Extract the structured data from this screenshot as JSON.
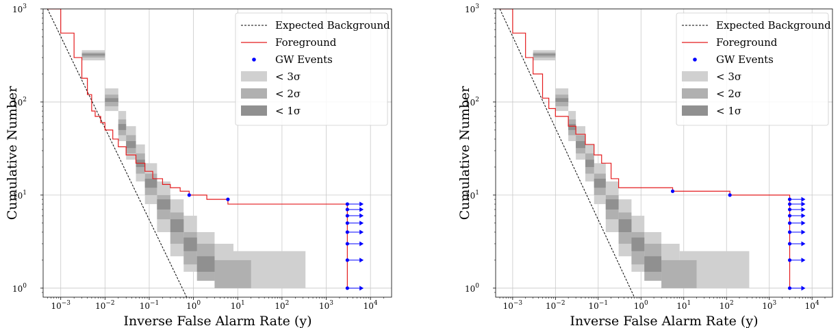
{
  "chart_data": [
    {
      "type": "line",
      "xlabel": "Inverse False Alarm Rate (y)",
      "ylabel": "Cumulative Number",
      "x_scale": "log",
      "y_scale": "log",
      "xlim": [
        0.0004,
        30000
      ],
      "ylim": [
        0.8,
        1000
      ],
      "x_ticks": [
        {
          "value": 0.001,
          "base": "10",
          "exp": "−3"
        },
        {
          "value": 0.01,
          "base": "10",
          "exp": "−2"
        },
        {
          "value": 0.1,
          "base": "10",
          "exp": "−1"
        },
        {
          "value": 1,
          "base": "10",
          "exp": "0"
        },
        {
          "value": 10,
          "base": "10",
          "exp": "1"
        },
        {
          "value": 100,
          "base": "10",
          "exp": "2"
        },
        {
          "value": 1000,
          "base": "10",
          "exp": "3"
        },
        {
          "value": 10000,
          "base": "10",
          "exp": "4"
        }
      ],
      "y_ticks": [
        {
          "value": 1,
          "base": "10",
          "exp": "0"
        },
        {
          "value": 10,
          "base": "10",
          "exp": "1"
        },
        {
          "value": 100,
          "base": "10",
          "exp": "2"
        },
        {
          "value": 1000,
          "base": "10",
          "exp": "3"
        }
      ],
      "grid": true,
      "legend_position": "top-right",
      "series": [
        {
          "name": "Expected Background",
          "style": "dashed",
          "color": "#000000",
          "x": [
            0.0005,
            0.7
          ],
          "y": [
            1000,
            0.8
          ]
        },
        {
          "name": "Foreground",
          "style": "step",
          "color": "#e41a1c",
          "x": [
            0.0005,
            0.001,
            0.002,
            0.003,
            0.004,
            0.005,
            0.006,
            0.008,
            0.01,
            0.015,
            0.02,
            0.03,
            0.05,
            0.08,
            0.12,
            0.2,
            0.3,
            0.5,
            0.8,
            2,
            6,
            3000
          ],
          "y": [
            1000,
            550,
            300,
            180,
            120,
            80,
            70,
            60,
            50,
            40,
            33,
            27,
            22,
            18,
            15,
            13,
            12,
            11,
            10,
            9,
            8,
            1
          ]
        },
        {
          "name": "GW Events",
          "style": "points",
          "color": "#0000ff",
          "x": [
            0.8,
            6,
            3000,
            3000,
            3000,
            3000,
            3000,
            3000,
            3000,
            3000
          ],
          "y": [
            10,
            9,
            8,
            7,
            6,
            5,
            4,
            3,
            2,
            1
          ]
        }
      ],
      "upper_limit_arrows": {
        "x_start": 3000,
        "x_end": 7000,
        "y": [
          8,
          7,
          6,
          5,
          4,
          3,
          2,
          1
        ]
      },
      "bands": [
        {
          "name": "< 3σ",
          "color": "#d0d0d0",
          "x": [
            0.003,
            0.01,
            0.02,
            0.03,
            0.05,
            0.08,
            0.15,
            0.3,
            0.6,
            1.2,
            3,
            8,
            340
          ],
          "low": [
            280,
            80,
            38,
            24,
            14,
            8,
            4,
            2.2,
            1.5,
            1.5,
            1.2,
            1,
            1
          ],
          "high": [
            360,
            140,
            80,
            55,
            35,
            22,
            14,
            9,
            6,
            4,
            3,
            2.5,
            1.5
          ]
        },
        {
          "name": "< 2σ",
          "color": "#b0b0b0",
          "x": [
            0.003,
            0.01,
            0.02,
            0.03,
            0.05,
            0.08,
            0.15,
            0.3,
            0.6,
            1.2,
            3,
            20
          ],
          "low": [
            300,
            90,
            44,
            28,
            17,
            10,
            5.5,
            3,
            1.8,
            1.2,
            1,
            1
          ],
          "high": [
            340,
            120,
            65,
            44,
            28,
            17,
            10,
            6.5,
            4,
            3,
            2,
            1.5
          ]
        },
        {
          "name": "< 1σ",
          "color": "#909090",
          "x": [
            0.003,
            0.01,
            0.02,
            0.03,
            0.05,
            0.08,
            0.15,
            0.3,
            0.6,
            1.2,
            3
          ],
          "low": [
            315,
            100,
            50,
            32,
            20,
            12,
            7,
            4,
            2.5,
            1.5,
            1
          ],
          "high": [
            330,
            110,
            58,
            38,
            24,
            15,
            9,
            5.5,
            3.5,
            2.2,
            1.5
          ]
        }
      ]
    },
    {
      "type": "line",
      "xlabel": "Inverse False Alarm Rate (y)",
      "ylabel": "Cumulative Number",
      "x_scale": "log",
      "y_scale": "log",
      "xlim": [
        0.0004,
        30000
      ],
      "ylim": [
        0.8,
        1000
      ],
      "x_ticks": [
        {
          "value": 0.001,
          "base": "10",
          "exp": "−3"
        },
        {
          "value": 0.01,
          "base": "10",
          "exp": "−2"
        },
        {
          "value": 0.1,
          "base": "10",
          "exp": "−1"
        },
        {
          "value": 1,
          "base": "10",
          "exp": "0"
        },
        {
          "value": 10,
          "base": "10",
          "exp": "1"
        },
        {
          "value": 100,
          "base": "10",
          "exp": "2"
        },
        {
          "value": 1000,
          "base": "10",
          "exp": "3"
        },
        {
          "value": 10000,
          "base": "10",
          "exp": "4"
        }
      ],
      "y_ticks": [
        {
          "value": 1,
          "base": "10",
          "exp": "0"
        },
        {
          "value": 10,
          "base": "10",
          "exp": "1"
        },
        {
          "value": 100,
          "base": "10",
          "exp": "2"
        },
        {
          "value": 1000,
          "base": "10",
          "exp": "3"
        }
      ],
      "grid": true,
      "legend_position": "top-right",
      "series": [
        {
          "name": "Expected Background",
          "style": "dashed",
          "color": "#000000",
          "x": [
            0.0005,
            0.7
          ],
          "y": [
            1000,
            0.8
          ]
        },
        {
          "name": "Foreground",
          "style": "step",
          "color": "#e41a1c",
          "x": [
            0.0005,
            0.001,
            0.002,
            0.003,
            0.005,
            0.007,
            0.01,
            0.02,
            0.03,
            0.05,
            0.08,
            0.12,
            0.2,
            0.3,
            5.5,
            120,
            3000
          ],
          "y": [
            1000,
            550,
            300,
            200,
            110,
            85,
            70,
            55,
            45,
            35,
            27,
            22,
            15,
            12,
            11,
            10,
            1
          ]
        },
        {
          "name": "GW Events",
          "style": "points",
          "color": "#0000ff",
          "x": [
            5.5,
            120,
            3000,
            3000,
            3000,
            3000,
            3000,
            3000,
            3000,
            3000,
            3000
          ],
          "y": [
            11,
            10,
            9,
            8,
            7,
            6,
            5,
            4,
            3,
            2,
            1
          ]
        }
      ],
      "upper_limit_arrows": {
        "x_start": 3000,
        "x_end": 7000,
        "y": [
          9,
          8,
          7,
          6,
          5,
          4,
          3,
          2,
          1
        ]
      },
      "bands": [
        {
          "name": "< 3σ",
          "color": "#d0d0d0",
          "x": [
            0.003,
            0.01,
            0.02,
            0.03,
            0.05,
            0.08,
            0.15,
            0.3,
            0.6,
            1.2,
            3,
            8,
            340
          ],
          "low": [
            280,
            80,
            38,
            24,
            14,
            8,
            4,
            2.2,
            1.5,
            1.5,
            1.2,
            1,
            1
          ],
          "high": [
            360,
            140,
            80,
            55,
            35,
            22,
            14,
            9,
            6,
            4,
            3,
            2.5,
            1.5
          ]
        },
        {
          "name": "< 2σ",
          "color": "#b0b0b0",
          "x": [
            0.003,
            0.01,
            0.02,
            0.03,
            0.05,
            0.08,
            0.15,
            0.3,
            0.6,
            1.2,
            3,
            20
          ],
          "low": [
            300,
            90,
            44,
            28,
            17,
            10,
            5.5,
            3,
            1.8,
            1.2,
            1,
            1
          ],
          "high": [
            340,
            120,
            65,
            44,
            28,
            17,
            10,
            6.5,
            4,
            3,
            2,
            1.5
          ]
        },
        {
          "name": "< 1σ",
          "color": "#909090",
          "x": [
            0.003,
            0.01,
            0.02,
            0.03,
            0.05,
            0.08,
            0.15,
            0.3,
            0.6,
            1.2,
            3
          ],
          "low": [
            315,
            100,
            50,
            32,
            20,
            12,
            7,
            4,
            2.5,
            1.5,
            1
          ],
          "high": [
            330,
            110,
            58,
            38,
            24,
            15,
            9,
            5.5,
            3.5,
            2.2,
            1.5
          ]
        }
      ]
    }
  ]
}
